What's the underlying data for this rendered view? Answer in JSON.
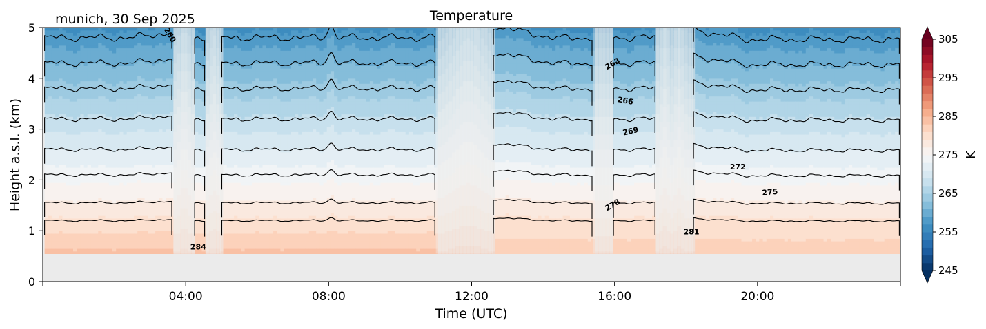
{
  "chart_data": {
    "type": "heatmap",
    "subtype": "filled-contour",
    "title": "Temperature",
    "subtitle": "munich, 30 Sep 2025",
    "xlabel": "Time (UTC)",
    "ylabel": "Height a.s.l. (km)",
    "xlim_hours": [
      0,
      24
    ],
    "ylim": [
      0,
      5
    ],
    "xticks": [
      {
        "hour": 4,
        "label": "04:00"
      },
      {
        "hour": 8,
        "label": "08:00"
      },
      {
        "hour": 12,
        "label": "12:00"
      },
      {
        "hour": 16,
        "label": "16:00"
      },
      {
        "hour": 20,
        "label": "20:00"
      }
    ],
    "yticks": [
      {
        "value": 0,
        "label": "0"
      },
      {
        "value": 1,
        "label": "1"
      },
      {
        "value": 2,
        "label": "2"
      },
      {
        "value": 3,
        "label": "3"
      },
      {
        "value": 4,
        "label": "4"
      },
      {
        "value": 5,
        "label": "5"
      }
    ],
    "data_bottom_km": 0.55,
    "colorbar": {
      "label": "K",
      "min": 245,
      "max": 305,
      "step": 2,
      "extend": "both",
      "ticks": [
        {
          "value": 245,
          "label": "245"
        },
        {
          "value": 255,
          "label": "255"
        },
        {
          "value": 265,
          "label": "265"
        },
        {
          "value": 275,
          "label": "275"
        },
        {
          "value": 285,
          "label": "285"
        },
        {
          "value": 295,
          "label": "295"
        },
        {
          "value": 305,
          "label": "305"
        }
      ],
      "colormap": "RdBu_r"
    },
    "contour_levels": [
      260,
      263,
      266,
      269,
      272,
      275,
      278,
      281,
      284
    ],
    "contour_labels": [
      {
        "level": 260,
        "label": "260",
        "hour": 3.55,
        "km": 4.85
      },
      {
        "level": 263,
        "label": "263",
        "hour": 15.95,
        "km": 4.28
      },
      {
        "level": 266,
        "label": "266",
        "hour": 16.3,
        "km": 3.55
      },
      {
        "level": 269,
        "label": "269",
        "hour": 16.45,
        "km": 2.95
      },
      {
        "level": 272,
        "label": "272",
        "hour": 19.45,
        "km": 2.25
      },
      {
        "level": 275,
        "label": "275",
        "hour": 20.35,
        "km": 1.75
      },
      {
        "level": 278,
        "label": "278",
        "hour": 15.95,
        "km": 1.5
      },
      {
        "level": 281,
        "label": "281",
        "hour": 18.15,
        "km": 0.97
      },
      {
        "level": 284,
        "label": "284",
        "hour": 4.35,
        "km": 0.67
      }
    ],
    "contour_lines_km_at_clear_times": [
      {
        "level": 260,
        "km": 4.8
      },
      {
        "level": 263,
        "km": 4.3
      },
      {
        "level": 266,
        "km": 3.8
      },
      {
        "level": 269,
        "km": 3.2
      },
      {
        "level": 272,
        "km": 2.6
      },
      {
        "level": 275,
        "km": 2.1
      },
      {
        "level": 278,
        "km": 1.55
      },
      {
        "level": 281,
        "km": 1.2
      },
      {
        "level": 284,
        "km": 0.75
      }
    ],
    "masked_intervals_hours": [
      {
        "start": 3.65,
        "end": 4.25
      },
      {
        "start": 4.55,
        "end": 5.0
      },
      {
        "start": 11.0,
        "end": 12.6
      },
      {
        "start": 15.4,
        "end": 15.95
      },
      {
        "start": 17.15,
        "end": 18.2
      }
    ],
    "surface_temp_K": 286,
    "lapse_K_per_km": 6.0,
    "grid": false
  }
}
